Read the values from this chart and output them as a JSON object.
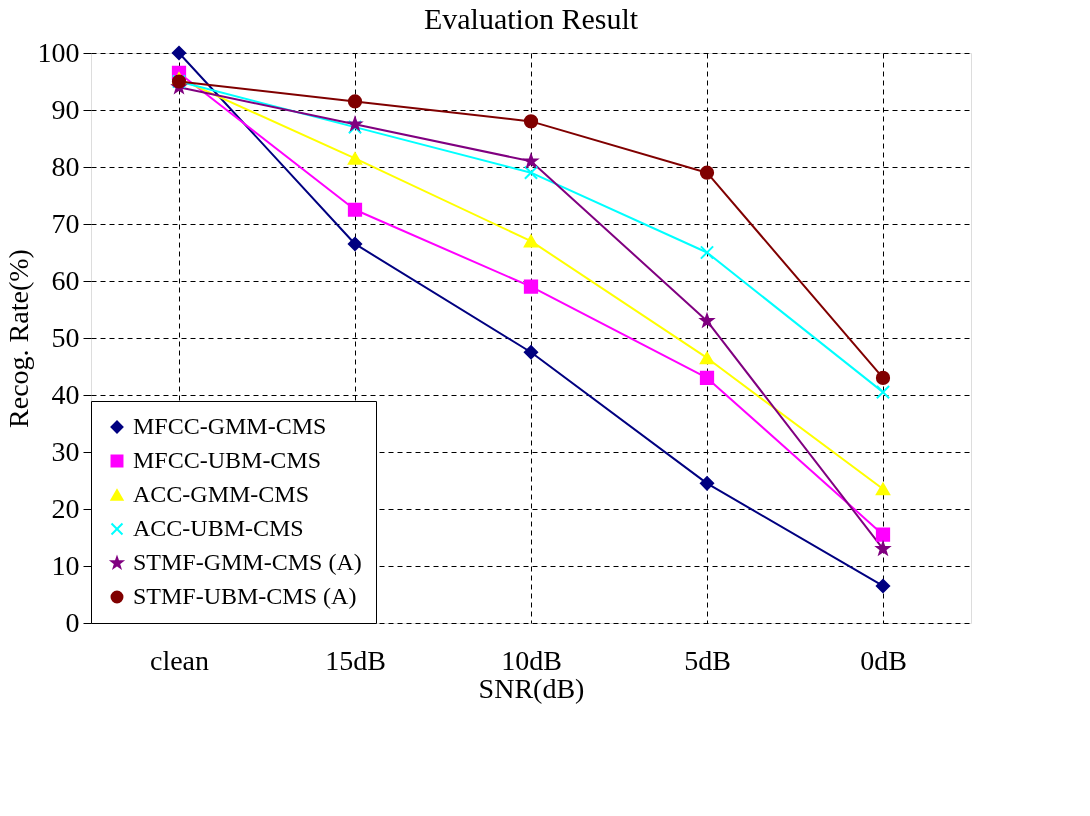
{
  "chart_data": {
    "type": "line",
    "title": "Evaluation Result",
    "xlabel": "SNR(dB)",
    "ylabel": "Recog. Rate(%)",
    "categories": [
      "clean",
      "15dB",
      "10dB",
      "5dB",
      "0dB"
    ],
    "series": [
      {
        "name": "MFCC-GMM-CMS",
        "color": "#000080",
        "marker": "diamond",
        "values": [
          100,
          66.5,
          47.5,
          24.5,
          6.5
        ]
      },
      {
        "name": "MFCC-UBM-CMS",
        "color": "#ff00ff",
        "marker": "square",
        "values": [
          96.5,
          72.5,
          59,
          43,
          15.5
        ]
      },
      {
        "name": "ACC-GMM-CMS",
        "color": "#ffff00",
        "marker": "triangle",
        "values": [
          95.5,
          81.5,
          67,
          46.5,
          23.5
        ]
      },
      {
        "name": "ACC-UBM-CMS",
        "color": "#00ffff",
        "marker": "cross",
        "values": [
          95,
          87,
          79,
          65,
          40.5
        ]
      },
      {
        "name": "STMF-GMM-CMS (A)",
        "color": "#800080",
        "marker": "star",
        "values": [
          94,
          87.5,
          81,
          53,
          13
        ]
      },
      {
        "name": "STMF-UBM-CMS (A)",
        "color": "#800000",
        "marker": "circle",
        "values": [
          95,
          91.5,
          88,
          79,
          43
        ]
      }
    ],
    "ylim": [
      0,
      100
    ],
    "yticks": [
      0,
      10,
      20,
      30,
      40,
      50,
      60,
      70,
      80,
      90,
      100
    ],
    "grid": true,
    "legend": "bottom left",
    "line_style": "solid"
  }
}
